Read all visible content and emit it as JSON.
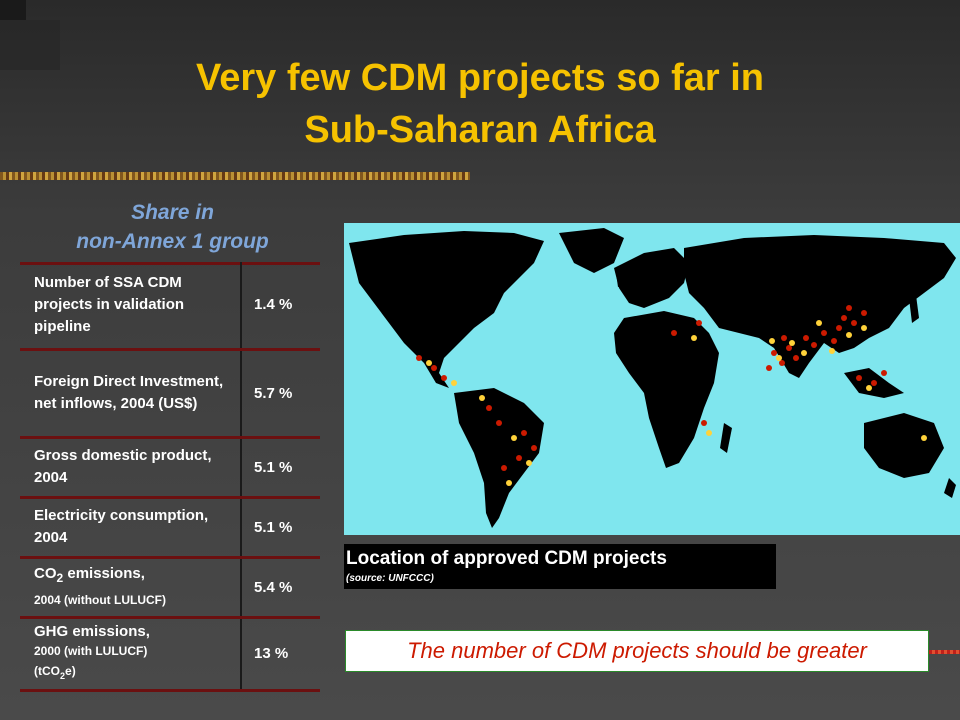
{
  "slide": {
    "title_line1": "Very few CDM projects so far in",
    "title_line2": "Sub-Saharan Africa",
    "share_line1": "Share in",
    "share_line2": "non-Annex 1 group"
  },
  "table": {
    "rows": [
      {
        "label": "Number of SSA CDM projects in validation pipeline",
        "value": "1.4 %"
      },
      {
        "label": "Foreign Direct Investment, net inflows, 2004 (US$)",
        "value": "5.7 %"
      },
      {
        "label": "Gross domestic product, 2004",
        "value": "5.1 %"
      },
      {
        "label": "Electricity consumption, 2004",
        "value": "5.1 %"
      },
      {
        "label_main": "CO",
        "label_sub": "2",
        "label_rest": " emissions,",
        "label_small": "2004 (without LULUCF)",
        "value": "5.4 %"
      },
      {
        "label_main": "GHG emissions,",
        "label_small": "2000 (with LULUCF)",
        "label_small2_a": "(tCO",
        "label_small2_sub": "2",
        "label_small2_b": "e)",
        "value": "13 %"
      }
    ]
  },
  "map": {
    "caption": "Location of approved CDM projects",
    "source": "(source: UNFCCC)"
  },
  "note": "The number of CDM projects should be greater"
}
